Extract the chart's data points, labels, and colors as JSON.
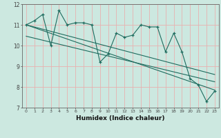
{
  "xlabel": "Humidex (Indice chaleur)",
  "bg_color": "#cce8e0",
  "line_color": "#1e6b5e",
  "grid_color": "#e8b0b0",
  "xlim": [
    -0.5,
    23.5
  ],
  "ylim": [
    7,
    12
  ],
  "xticks": [
    0,
    1,
    2,
    3,
    4,
    5,
    6,
    7,
    8,
    9,
    10,
    11,
    12,
    13,
    14,
    15,
    16,
    17,
    18,
    19,
    20,
    21,
    22,
    23
  ],
  "yticks": [
    7,
    8,
    9,
    10,
    11,
    12
  ],
  "series1_x": [
    0,
    1,
    2,
    3,
    4,
    5,
    6,
    7,
    8,
    9,
    10,
    11,
    12,
    13,
    14,
    15,
    16,
    17,
    18,
    19,
    20,
    21,
    22,
    23
  ],
  "series1_y": [
    11.0,
    11.2,
    11.5,
    10.0,
    11.7,
    11.0,
    11.1,
    11.1,
    11.0,
    9.2,
    9.6,
    10.6,
    10.4,
    10.5,
    11.0,
    10.9,
    10.9,
    9.7,
    10.6,
    9.7,
    8.4,
    8.1,
    7.3,
    7.8
  ],
  "trend1_x": [
    0,
    23
  ],
  "trend1_y": [
    11.0,
    8.6
  ],
  "trend2_x": [
    0,
    23
  ],
  "trend2_y": [
    11.0,
    7.85
  ],
  "trend3_x": [
    0,
    23
  ],
  "trend3_y": [
    10.45,
    8.25
  ]
}
